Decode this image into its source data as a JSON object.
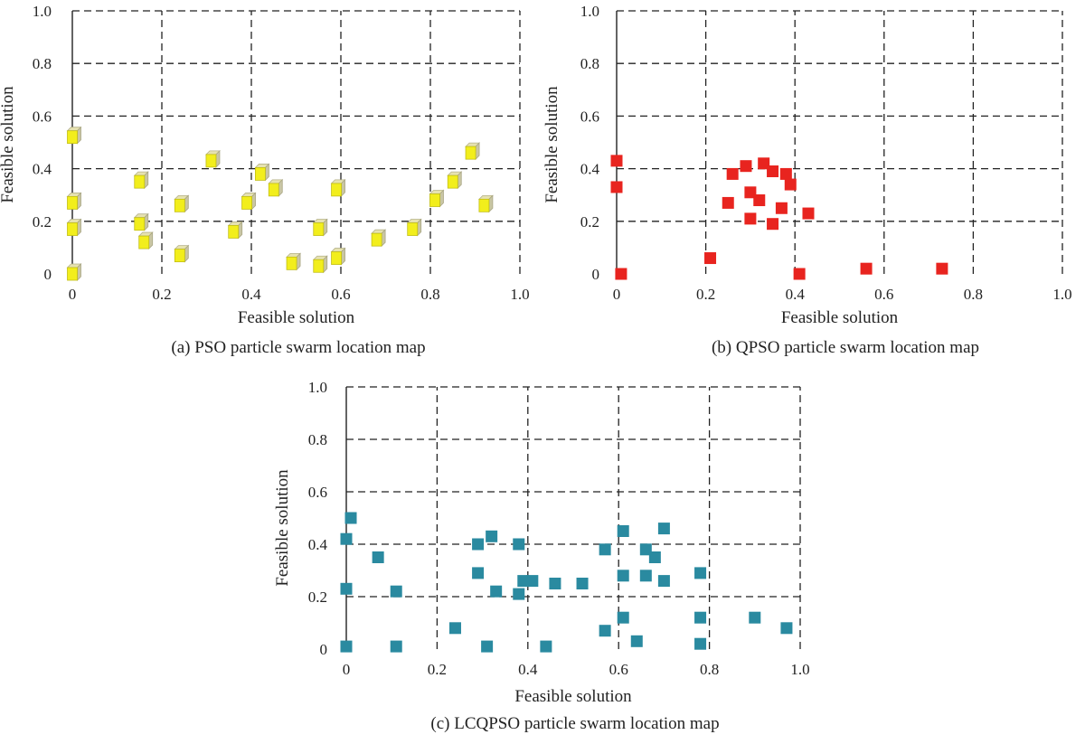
{
  "figure": {
    "panels": [
      {
        "caption": "(a) PSO particle swarm location map",
        "marker": "yellow-cube-icon",
        "color": "#f2ee1c"
      },
      {
        "caption": "(b) QPSO particle swarm location map",
        "marker": "red-square-icon",
        "color": "#e8241f"
      },
      {
        "caption": "(c) LCQPSO particle swarm location map",
        "marker": "teal-square-icon",
        "color": "#2a8aa0"
      }
    ]
  },
  "chart_data": [
    {
      "type": "scatter",
      "title": "(a) PSO particle swarm location map",
      "xlabel": "Feasible solution",
      "ylabel": "Feasible solution",
      "xlim": [
        0,
        1.0
      ],
      "ylim": [
        0,
        1.0
      ],
      "xticks": [
        "0",
        "0.2",
        "0.4",
        "0.6",
        "0.8",
        "1.0"
      ],
      "yticks": [
        "0",
        "0.2",
        "0.4",
        "0.6",
        "0.8",
        "1.0"
      ],
      "grid": true,
      "series": [
        {
          "color": "#f2ee1c",
          "points": [
            [
              0.0,
              0.52
            ],
            [
              0.0,
              0.27
            ],
            [
              0.0,
              0.17
            ],
            [
              0.0,
              0.0
            ],
            [
              0.15,
              0.35
            ],
            [
              0.15,
              0.19
            ],
            [
              0.16,
              0.12
            ],
            [
              0.24,
              0.26
            ],
            [
              0.24,
              0.07
            ],
            [
              0.31,
              0.43
            ],
            [
              0.36,
              0.16
            ],
            [
              0.39,
              0.27
            ],
            [
              0.42,
              0.38
            ],
            [
              0.45,
              0.32
            ],
            [
              0.49,
              0.04
            ],
            [
              0.55,
              0.17
            ],
            [
              0.55,
              0.03
            ],
            [
              0.59,
              0.32
            ],
            [
              0.59,
              0.06
            ],
            [
              0.68,
              0.13
            ],
            [
              0.76,
              0.17
            ],
            [
              0.81,
              0.28
            ],
            [
              0.85,
              0.35
            ],
            [
              0.89,
              0.46
            ],
            [
              0.92,
              0.26
            ]
          ]
        }
      ]
    },
    {
      "type": "scatter",
      "title": "(b) QPSO particle swarm location map",
      "xlabel": "Feasible solution",
      "ylabel": "Feasible solution",
      "xlim": [
        0,
        1.0
      ],
      "ylim": [
        0,
        1.0
      ],
      "xticks": [
        "0",
        "0.2",
        "0.4",
        "0.6",
        "0.8",
        "1.0"
      ],
      "yticks": [
        "0",
        "0.2",
        "0.4",
        "0.6",
        "0.8",
        "1.0"
      ],
      "grid": true,
      "series": [
        {
          "color": "#e8241f",
          "points": [
            [
              0.0,
              0.43
            ],
            [
              0.0,
              0.33
            ],
            [
              0.01,
              0.0
            ],
            [
              0.21,
              0.06
            ],
            [
              0.25,
              0.27
            ],
            [
              0.26,
              0.38
            ],
            [
              0.29,
              0.41
            ],
            [
              0.3,
              0.21
            ],
            [
              0.3,
              0.31
            ],
            [
              0.32,
              0.28
            ],
            [
              0.33,
              0.42
            ],
            [
              0.35,
              0.19
            ],
            [
              0.35,
              0.39
            ],
            [
              0.37,
              0.25
            ],
            [
              0.38,
              0.38
            ],
            [
              0.39,
              0.34
            ],
            [
              0.41,
              0.0
            ],
            [
              0.43,
              0.23
            ],
            [
              0.56,
              0.02
            ],
            [
              0.73,
              0.02
            ]
          ]
        }
      ]
    },
    {
      "type": "scatter",
      "title": "(c) LCQPSO particle swarm location map",
      "xlabel": "Feasible solution",
      "ylabel": "Feasible solution",
      "xlim": [
        0,
        1.0
      ],
      "ylim": [
        0,
        1.0
      ],
      "xticks": [
        "0",
        "0.2",
        "0.4",
        "0.6",
        "0.8",
        "1.0"
      ],
      "yticks": [
        "0",
        "0.2",
        "0.4",
        "0.6",
        "0.8",
        "1.0"
      ],
      "grid": true,
      "series": [
        {
          "color": "#2a8aa0",
          "points": [
            [
              0.0,
              0.42
            ],
            [
              0.01,
              0.5
            ],
            [
              0.0,
              0.23
            ],
            [
              0.0,
              0.01
            ],
            [
              0.07,
              0.35
            ],
            [
              0.11,
              0.22
            ],
            [
              0.11,
              0.01
            ],
            [
              0.24,
              0.08
            ],
            [
              0.29,
              0.4
            ],
            [
              0.29,
              0.29
            ],
            [
              0.31,
              0.01
            ],
            [
              0.32,
              0.43
            ],
            [
              0.33,
              0.22
            ],
            [
              0.38,
              0.4
            ],
            [
              0.38,
              0.21
            ],
            [
              0.39,
              0.26
            ],
            [
              0.41,
              0.26
            ],
            [
              0.44,
              0.01
            ],
            [
              0.46,
              0.25
            ],
            [
              0.52,
              0.25
            ],
            [
              0.57,
              0.38
            ],
            [
              0.57,
              0.07
            ],
            [
              0.61,
              0.45
            ],
            [
              0.61,
              0.28
            ],
            [
              0.61,
              0.12
            ],
            [
              0.64,
              0.03
            ],
            [
              0.66,
              0.38
            ],
            [
              0.66,
              0.28
            ],
            [
              0.68,
              0.35
            ],
            [
              0.7,
              0.46
            ],
            [
              0.7,
              0.26
            ],
            [
              0.78,
              0.29
            ],
            [
              0.78,
              0.12
            ],
            [
              0.78,
              0.02
            ],
            [
              0.9,
              0.12
            ],
            [
              0.97,
              0.08
            ]
          ]
        }
      ]
    }
  ]
}
